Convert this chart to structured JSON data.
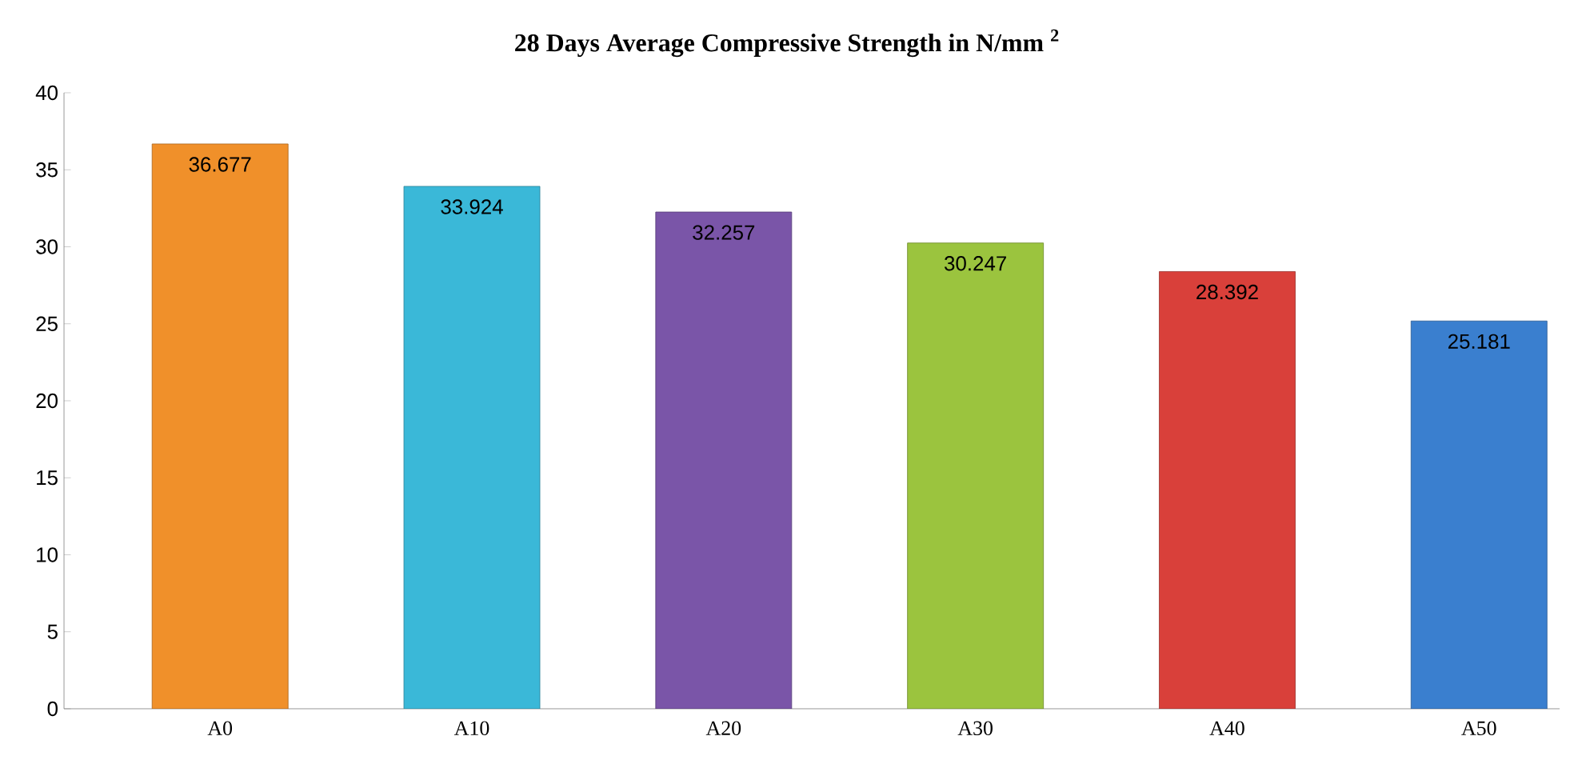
{
  "chart_data": {
    "type": "bar",
    "title": "28 Days Average Compressive Strength in N/mm $^{2}$",
    "categories": [
      "A0",
      "A10",
      "A20",
      "A30",
      "A40",
      "A50"
    ],
    "values": [
      36.677,
      33.924,
      32.257,
      30.247,
      28.392,
      25.181
    ],
    "colors": [
      "#f0902a",
      "#3ab8d8",
      "#7a55a8",
      "#9bc43e",
      "#d9403a",
      "#3a7fcf"
    ],
    "ylim": [
      0,
      40
    ],
    "yticks": [
      0,
      5,
      10,
      15,
      20,
      25,
      30,
      35,
      40
    ],
    "data_labels": true
  }
}
